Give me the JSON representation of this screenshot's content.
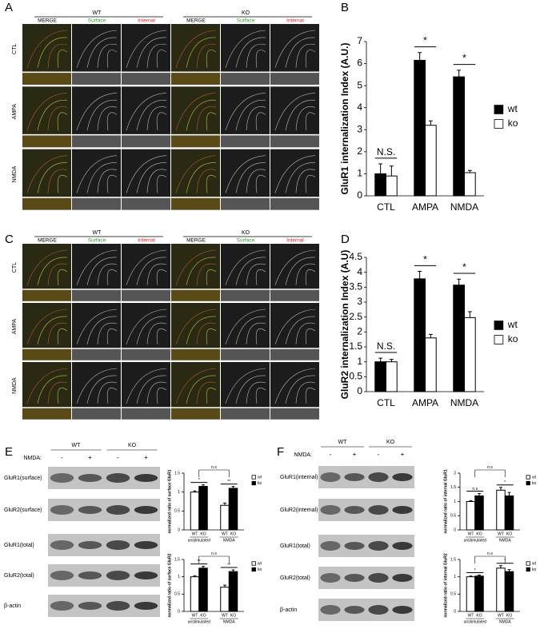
{
  "panel_labels": [
    "A",
    "B",
    "C",
    "D",
    "E",
    "F"
  ],
  "micrographs": [
    {
      "genotypes": [
        "WT",
        "KO"
      ],
      "channels": [
        "MERGE",
        "Surface",
        "Internal"
      ],
      "conditions": [
        "CTL",
        "AMPA",
        "NMDA"
      ]
    },
    {
      "genotypes": [
        "WT",
        "KO"
      ],
      "channels": [
        "MERGE",
        "Surface",
        "Internal"
      ],
      "conditions": [
        "CTL",
        "AMPA",
        "NMDA"
      ]
    }
  ],
  "blots": [
    {
      "genotypes": [
        "WT",
        "KO"
      ],
      "treatment_label": "NMDA:",
      "treatments": [
        "-",
        "+",
        "-",
        "+"
      ],
      "rows": [
        "GluR1(surface)",
        "GluR2(surface)",
        "GluR1(total)",
        "GluR2(total)",
        "β-actin"
      ]
    },
    {
      "genotypes": [
        "WT",
        "KO"
      ],
      "treatment_label": "NMDA:",
      "treatments": [
        "-",
        "+",
        "-",
        "+"
      ],
      "rows": [
        "GluR1(internal)",
        "GluR2(internal)",
        "GluR1(total)",
        "GluR2(total)",
        "β-actin"
      ]
    }
  ],
  "chart_data": [
    {
      "type": "bar",
      "ylabel": "GluR1 internalization Index (A.U.)",
      "categories": [
        "CTL",
        "AMPA",
        "NMDA"
      ],
      "series": [
        {
          "name": "wt",
          "color": "#000000",
          "values": [
            1,
            6.15,
            5.4
          ],
          "errors": [
            0.45,
            0.35,
            0.3
          ]
        },
        {
          "name": "ko",
          "color": "#ffffff",
          "values": [
            0.9,
            3.2,
            1.05
          ],
          "errors": [
            0.45,
            0.2,
            0.1
          ]
        }
      ],
      "annotations": [
        "N.S.",
        "*",
        "*"
      ],
      "ylim": [
        0,
        7
      ],
      "yticks": [
        0,
        1,
        2,
        3,
        4,
        5,
        6,
        7
      ]
    },
    {
      "type": "bar",
      "ylabel": "GluR2 internalization Index (A.U)",
      "categories": [
        "CTL",
        "AMPA",
        "NMDA"
      ],
      "series": [
        {
          "name": "wt",
          "color": "#000000",
          "values": [
            1,
            3.78,
            3.57
          ],
          "errors": [
            0.12,
            0.25,
            0.2
          ]
        },
        {
          "name": "ko",
          "color": "#ffffff",
          "values": [
            1,
            1.8,
            2.48
          ],
          "errors": [
            0.08,
            0.12,
            0.2
          ]
        }
      ],
      "annotations": [
        "N.S.",
        "*",
        "*"
      ],
      "ylim": [
        0,
        4.5
      ],
      "yticks": [
        0,
        0.5,
        1,
        1.5,
        2,
        2.5,
        3,
        3.5,
        4,
        4.5
      ]
    },
    {
      "type": "bar",
      "ylabel": "normalized ratio of surface GluR1",
      "categories": [
        "unstimulated",
        "NMDA"
      ],
      "bar_labels": [
        "WT",
        "KO"
      ],
      "series": [
        {
          "name": "wt",
          "color": "#ffffff",
          "values": [
            1,
            0.65
          ],
          "errors": [
            0.03,
            0.06
          ]
        },
        {
          "name": "ko",
          "color": "#000000",
          "values": [
            1.15,
            1.1
          ],
          "errors": [
            0.04,
            0.05
          ]
        }
      ],
      "annotations": [
        "*",
        "**"
      ],
      "across": "n.s",
      "ylim": [
        0,
        1.5
      ],
      "yticks": [
        0,
        0.5,
        1,
        1.5
      ]
    },
    {
      "type": "bar",
      "ylabel": "normalized ratio of surface GluR2",
      "categories": [
        "unstimulated",
        "NMDA"
      ],
      "bar_labels": [
        "WT",
        "KO"
      ],
      "series": [
        {
          "name": "wt",
          "color": "#ffffff",
          "values": [
            1,
            0.7
          ],
          "errors": [
            0.03,
            0.06
          ]
        },
        {
          "name": "ko",
          "color": "#000000",
          "values": [
            1.25,
            1.15
          ],
          "errors": [
            0.05,
            0.05
          ]
        }
      ],
      "annotations": [
        "**",
        "**"
      ],
      "across": "n.s",
      "ylim": [
        0,
        1.5
      ],
      "yticks": [
        0,
        0.5,
        1,
        1.5
      ]
    },
    {
      "type": "bar",
      "ylabel": "normalized ratio of internal GluR1",
      "categories": [
        "unstimulated",
        "NMDA"
      ],
      "bar_labels": [
        "WT",
        "KO"
      ],
      "series": [
        {
          "name": "wt",
          "color": "#ffffff",
          "values": [
            1,
            1.4
          ],
          "errors": [
            0.03,
            0.1
          ]
        },
        {
          "name": "ko",
          "color": "#000000",
          "values": [
            1.2,
            1.2
          ],
          "errors": [
            0.08,
            0.12
          ]
        }
      ],
      "annotations": [
        "n.s",
        "*"
      ],
      "across": "n.s",
      "ylim": [
        0,
        2
      ],
      "yticks": [
        0,
        0.5,
        1,
        1.5,
        2
      ]
    },
    {
      "type": "bar",
      "ylabel": "normalized ratio of internal GluR2",
      "categories": [
        "unstimulated",
        "NMDA"
      ],
      "bar_labels": [
        "WT",
        "KO"
      ],
      "series": [
        {
          "name": "wt",
          "color": "#ffffff",
          "values": [
            1,
            1.25
          ],
          "errors": [
            0.02,
            0.07
          ]
        },
        {
          "name": "ko",
          "color": "#000000",
          "values": [
            1.02,
            1.15
          ],
          "errors": [
            0.03,
            0.06
          ]
        }
      ],
      "annotations": [
        "*",
        "*"
      ],
      "across": "n.s",
      "ylim": [
        0,
        1.5
      ],
      "yticks": [
        0,
        0.5,
        1,
        1.5
      ]
    }
  ]
}
